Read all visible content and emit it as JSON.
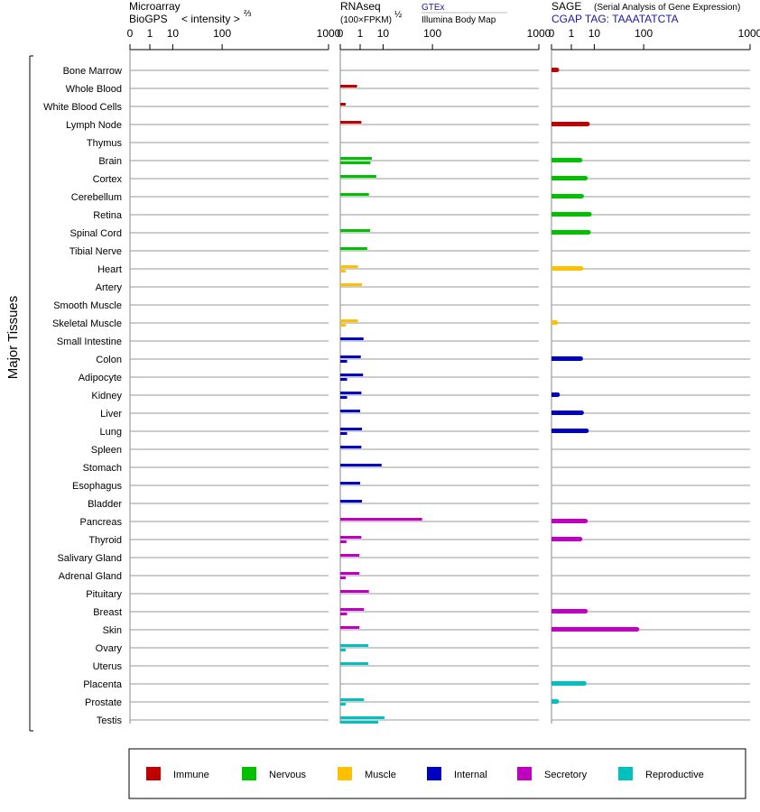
{
  "panels": {
    "microarray": {
      "title_line1": "Microarray",
      "title_line2": "BioGPS",
      "intensity_label": "< intensity >",
      "intensity_exp": "⅔"
    },
    "rnaseq": {
      "title": "RNAseq",
      "subtitle": "(100×FPKM)",
      "subtitle_exp": "½",
      "source_top": "GTEx",
      "source_bottom": "Illumina Body Map"
    },
    "sage": {
      "title": "SAGE",
      "subtitle": "(Serial Analysis of Gene Expression)",
      "tag_label": "CGAP TAG: TAAATATCTA"
    }
  },
  "y_axis_label": "Major Tissues",
  "colors": {
    "Immune": "#c00000",
    "Nervous": "#00c000",
    "Muscle": "#ffc000",
    "Internal": "#0000c0",
    "Secretory": "#c000c0",
    "Reproductive": "#00c0c0"
  },
  "legend": [
    "Immune",
    "Nervous",
    "Muscle",
    "Internal",
    "Secretory",
    "Reproductive"
  ],
  "chart_data": {
    "type": "bar",
    "orientation": "horizontal",
    "x_ticks": [
      "0",
      "1",
      "10",
      "100",
      "1000"
    ],
    "x_tick_values": [
      0,
      1,
      10,
      100,
      1000
    ],
    "xlim": [
      0,
      1000
    ],
    "categories": [
      "Bone Marrow",
      "Whole Blood",
      "White Blood Cells",
      "Lymph Node",
      "Thymus",
      "Brain",
      "Cortex",
      "Cerebellum",
      "Retina",
      "Spinal Cord",
      "Tibial Nerve",
      "Heart",
      "Artery",
      "Smooth Muscle",
      "Skeletal Muscle",
      "Small Intestine",
      "Colon",
      "Adipocyte",
      "Kidney",
      "Liver",
      "Lung",
      "Spleen",
      "Stomach",
      "Esophagus",
      "Bladder",
      "Pancreas",
      "Thyroid",
      "Salivary Gland",
      "Adrenal Gland",
      "Pituitary",
      "Breast",
      "Skin",
      "Ovary",
      "Uterus",
      "Placenta",
      "Prostate",
      "Testis"
    ],
    "category_groups": [
      "Immune",
      "Immune",
      "Immune",
      "Immune",
      "Immune",
      "Nervous",
      "Nervous",
      "Nervous",
      "Nervous",
      "Nervous",
      "Nervous",
      "Muscle",
      "Muscle",
      "Muscle",
      "Muscle",
      "Internal",
      "Internal",
      "Internal",
      "Internal",
      "Internal",
      "Internal",
      "Internal",
      "Internal",
      "Internal",
      "Internal",
      "Secretory",
      "Secretory",
      "Secretory",
      "Secretory",
      "Secretory",
      "Secretory",
      "Secretory",
      "Reproductive",
      "Reproductive",
      "Reproductive",
      "Reproductive",
      "Reproductive"
    ],
    "series": [
      {
        "panel": "microarray",
        "values": [
          null,
          null,
          null,
          null,
          null,
          null,
          null,
          null,
          null,
          null,
          null,
          null,
          null,
          null,
          null,
          null,
          null,
          null,
          null,
          null,
          null,
          null,
          null,
          null,
          null,
          null,
          null,
          null,
          null,
          null,
          null,
          null,
          null,
          null,
          null,
          null,
          null
        ]
      },
      {
        "panel": "rnaseq",
        "source": "GTEx",
        "values": [
          null,
          0.6,
          0.02,
          1.2,
          null,
          4.0,
          6.0,
          3.0,
          null,
          3.4,
          2.5,
          0.7,
          1.3,
          null,
          0.7,
          1.6,
          1.1,
          1.5,
          1.2,
          1.0,
          1.3,
          1.2,
          9.0,
          1.0,
          1.3,
          70,
          1.2,
          0.9,
          0.9,
          3.0,
          1.7,
          0.9,
          2.8,
          2.8,
          null,
          1.7,
          11
        ]
      },
      {
        "panel": "rnaseq",
        "source": "Illumina Body Map",
        "values": [
          null,
          null,
          null,
          null,
          null,
          3.5,
          null,
          null,
          null,
          null,
          null,
          0.02,
          null,
          null,
          0.02,
          null,
          0.04,
          0.04,
          0.04,
          null,
          0.04,
          null,
          null,
          null,
          null,
          null,
          0.03,
          null,
          0.02,
          null,
          0.04,
          null,
          0.02,
          null,
          null,
          0.02,
          7.0
        ]
      },
      {
        "panel": "sage",
        "values": [
          0.02,
          null,
          null,
          6.0,
          null,
          3.0,
          5.0,
          3.5,
          7.0,
          6.5,
          null,
          3.4,
          null,
          null,
          0.01,
          null,
          3.2,
          null,
          0.03,
          3.5,
          5.5,
          null,
          null,
          null,
          null,
          5.0,
          3.0,
          null,
          null,
          null,
          5.0,
          80,
          null,
          null,
          4.5,
          0.02,
          null
        ]
      }
    ]
  }
}
